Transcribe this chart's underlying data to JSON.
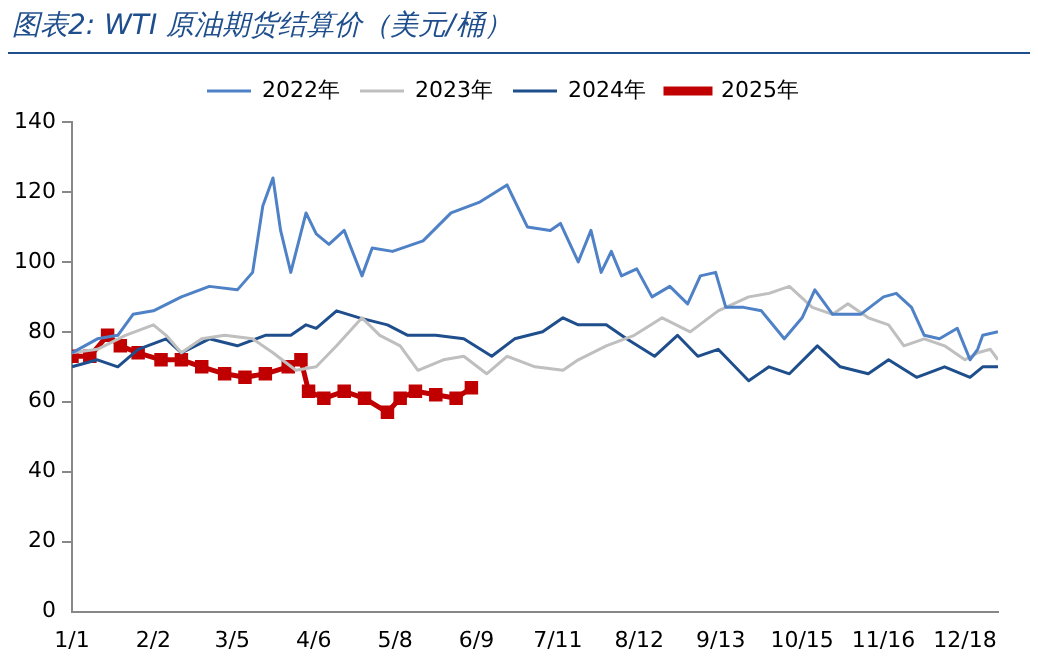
{
  "chart_data": {
    "type": "line",
    "title": "图表2:  WTI 原油期货结算价（美元/桶）",
    "legend": "top",
    "grid": false,
    "xlim": [
      "--01-01",
      "--12-31"
    ],
    "xticks": [
      {
        "value": "--01-01",
        "label": "1/1"
      },
      {
        "value": "--02-02",
        "label": "2/2"
      },
      {
        "value": "--03-05",
        "label": "3/5"
      },
      {
        "value": "--04-06",
        "label": "4/6"
      },
      {
        "value": "--05-08",
        "label": "5/8"
      },
      {
        "value": "--06-09",
        "label": "6/9"
      },
      {
        "value": "--07-11",
        "label": "7/11"
      },
      {
        "value": "--08-12",
        "label": "8/12"
      },
      {
        "value": "--09-13",
        "label": "9/13"
      },
      {
        "value": "--10-15",
        "label": "10/15"
      },
      {
        "value": "--11-16",
        "label": "11/16"
      },
      {
        "value": "--12-18",
        "label": "12/18"
      }
    ],
    "ylim": [
      0,
      140
    ],
    "yticks": [
      0,
      20,
      40,
      60,
      80,
      100,
      120,
      140
    ],
    "series": [
      {
        "name": "2022年",
        "color": "#4f81c7",
        "marker": "none",
        "x": [
          "--01-01",
          "--01-11",
          "--01-19",
          "--01-25",
          "--02-02",
          "--02-13",
          "--02-24",
          "--03-07",
          "--03-13",
          "--03-17",
          "--03-21",
          "--03-24",
          "--03-28",
          "--04-03",
          "--04-07",
          "--04-12",
          "--04-18",
          "--04-25",
          "--04-29",
          "--05-07",
          "--05-19",
          "--05-30",
          "--06-10",
          "--06-21",
          "--06-29",
          "--07-08",
          "--07-12",
          "--07-19",
          "--07-24",
          "--07-28",
          "--08-01",
          "--08-05",
          "--08-11",
          "--08-17",
          "--08-24",
          "--08-31",
          "--09-05",
          "--09-11",
          "--09-15",
          "--09-22",
          "--09-29",
          "--10-08",
          "--10-15",
          "--10-20",
          "--10-27",
          "--11-07",
          "--11-16",
          "--11-21",
          "--11-27",
          "--12-02",
          "--12-08",
          "--12-15",
          "--12-20",
          "--12-23",
          "--12-25",
          "--12-31"
        ],
        "values": [
          74,
          78,
          79,
          85,
          86,
          90,
          93,
          92,
          97,
          116,
          124,
          109,
          97,
          114,
          108,
          105,
          109,
          96,
          104,
          103,
          106,
          114,
          117,
          122,
          110,
          109,
          111,
          100,
          109,
          97,
          103,
          96,
          98,
          90,
          93,
          88,
          96,
          97,
          87,
          87,
          86,
          78,
          84,
          92,
          85,
          85,
          90,
          91,
          87,
          79,
          78,
          81,
          72,
          75,
          79,
          80
        ]
      },
      {
        "name": "2023年",
        "color": "#bfbfbf",
        "marker": "none",
        "x": [
          "--01-01",
          "--01-11",
          "--01-22",
          "--02-02",
          "--02-07",
          "--02-13",
          "--02-21",
          "--03-02",
          "--03-13",
          "--03-21",
          "--03-30",
          "--04-07",
          "--04-15",
          "--04-25",
          "--05-02",
          "--05-10",
          "--05-17",
          "--05-27",
          "--06-04",
          "--06-13",
          "--06-21",
          "--07-02",
          "--07-13",
          "--07-19",
          "--07-30",
          "--08-10",
          "--08-21",
          "--09-01",
          "--09-12",
          "--09-24",
          "--10-02",
          "--10-10",
          "--10-19",
          "--10-27",
          "--11-02",
          "--11-10",
          "--11-18",
          "--11-24",
          "--12-02",
          "--12-10",
          "--12-18",
          "--12-23",
          "--12-28",
          "--12-31"
        ],
        "values": [
          74,
          75,
          79,
          82,
          79,
          74,
          78,
          79,
          78,
          74,
          69,
          70,
          76,
          84,
          79,
          76,
          69,
          72,
          73,
          68,
          73,
          70,
          69,
          72,
          76,
          79,
          84,
          80,
          86,
          90,
          91,
          93,
          87,
          85,
          88,
          84,
          82,
          76,
          78,
          76,
          72,
          74,
          75,
          72
        ]
      },
      {
        "name": "2024年",
        "color": "#1f4e8c",
        "marker": "none",
        "x": [
          "--01-01",
          "--01-11",
          "--01-19",
          "--01-27",
          "--02-07",
          "--02-13",
          "--02-24",
          "--03-07",
          "--03-18",
          "--03-28",
          "--04-03",
          "--04-07",
          "--04-15",
          "--04-24",
          "--05-05",
          "--05-13",
          "--05-24",
          "--06-04",
          "--06-15",
          "--06-24",
          "--07-05",
          "--07-13",
          "--07-19",
          "--07-30",
          "--08-07",
          "--08-18",
          "--08-27",
          "--09-04",
          "--09-12",
          "--09-24",
          "--10-02",
          "--10-10",
          "--10-21",
          "--10-30",
          "--11-10",
          "--11-18",
          "--11-29",
          "--12-10",
          "--12-20",
          "--12-25",
          "--12-31"
        ],
        "values": [
          70,
          72,
          70,
          75,
          78,
          74,
          78,
          76,
          79,
          79,
          82,
          81,
          86,
          84,
          82,
          79,
          79,
          78,
          73,
          78,
          80,
          84,
          82,
          82,
          78,
          73,
          79,
          73,
          75,
          66,
          70,
          68,
          76,
          70,
          68,
          72,
          67,
          70,
          67,
          70,
          70
        ]
      },
      {
        "name": "2025年",
        "color": "#c00000",
        "marker": "square",
        "x": [
          "--01-01",
          "--01-08",
          "--01-15",
          "--01-20",
          "--01-27",
          "--02-05",
          "--02-13",
          "--02-21",
          "--03-02",
          "--03-10",
          "--03-18",
          "--03-27",
          "--04-01",
          "--04-04",
          "--04-10",
          "--04-18",
          "--04-26",
          "--05-05",
          "--05-10",
          "--05-16",
          "--05-24",
          "--06-01",
          "--06-07"
        ],
        "values": [
          73,
          73,
          79,
          76,
          74,
          72,
          72,
          70,
          68,
          67,
          68,
          70,
          72,
          63,
          61,
          63,
          61,
          57,
          61,
          63,
          62,
          61,
          64
        ]
      }
    ]
  }
}
